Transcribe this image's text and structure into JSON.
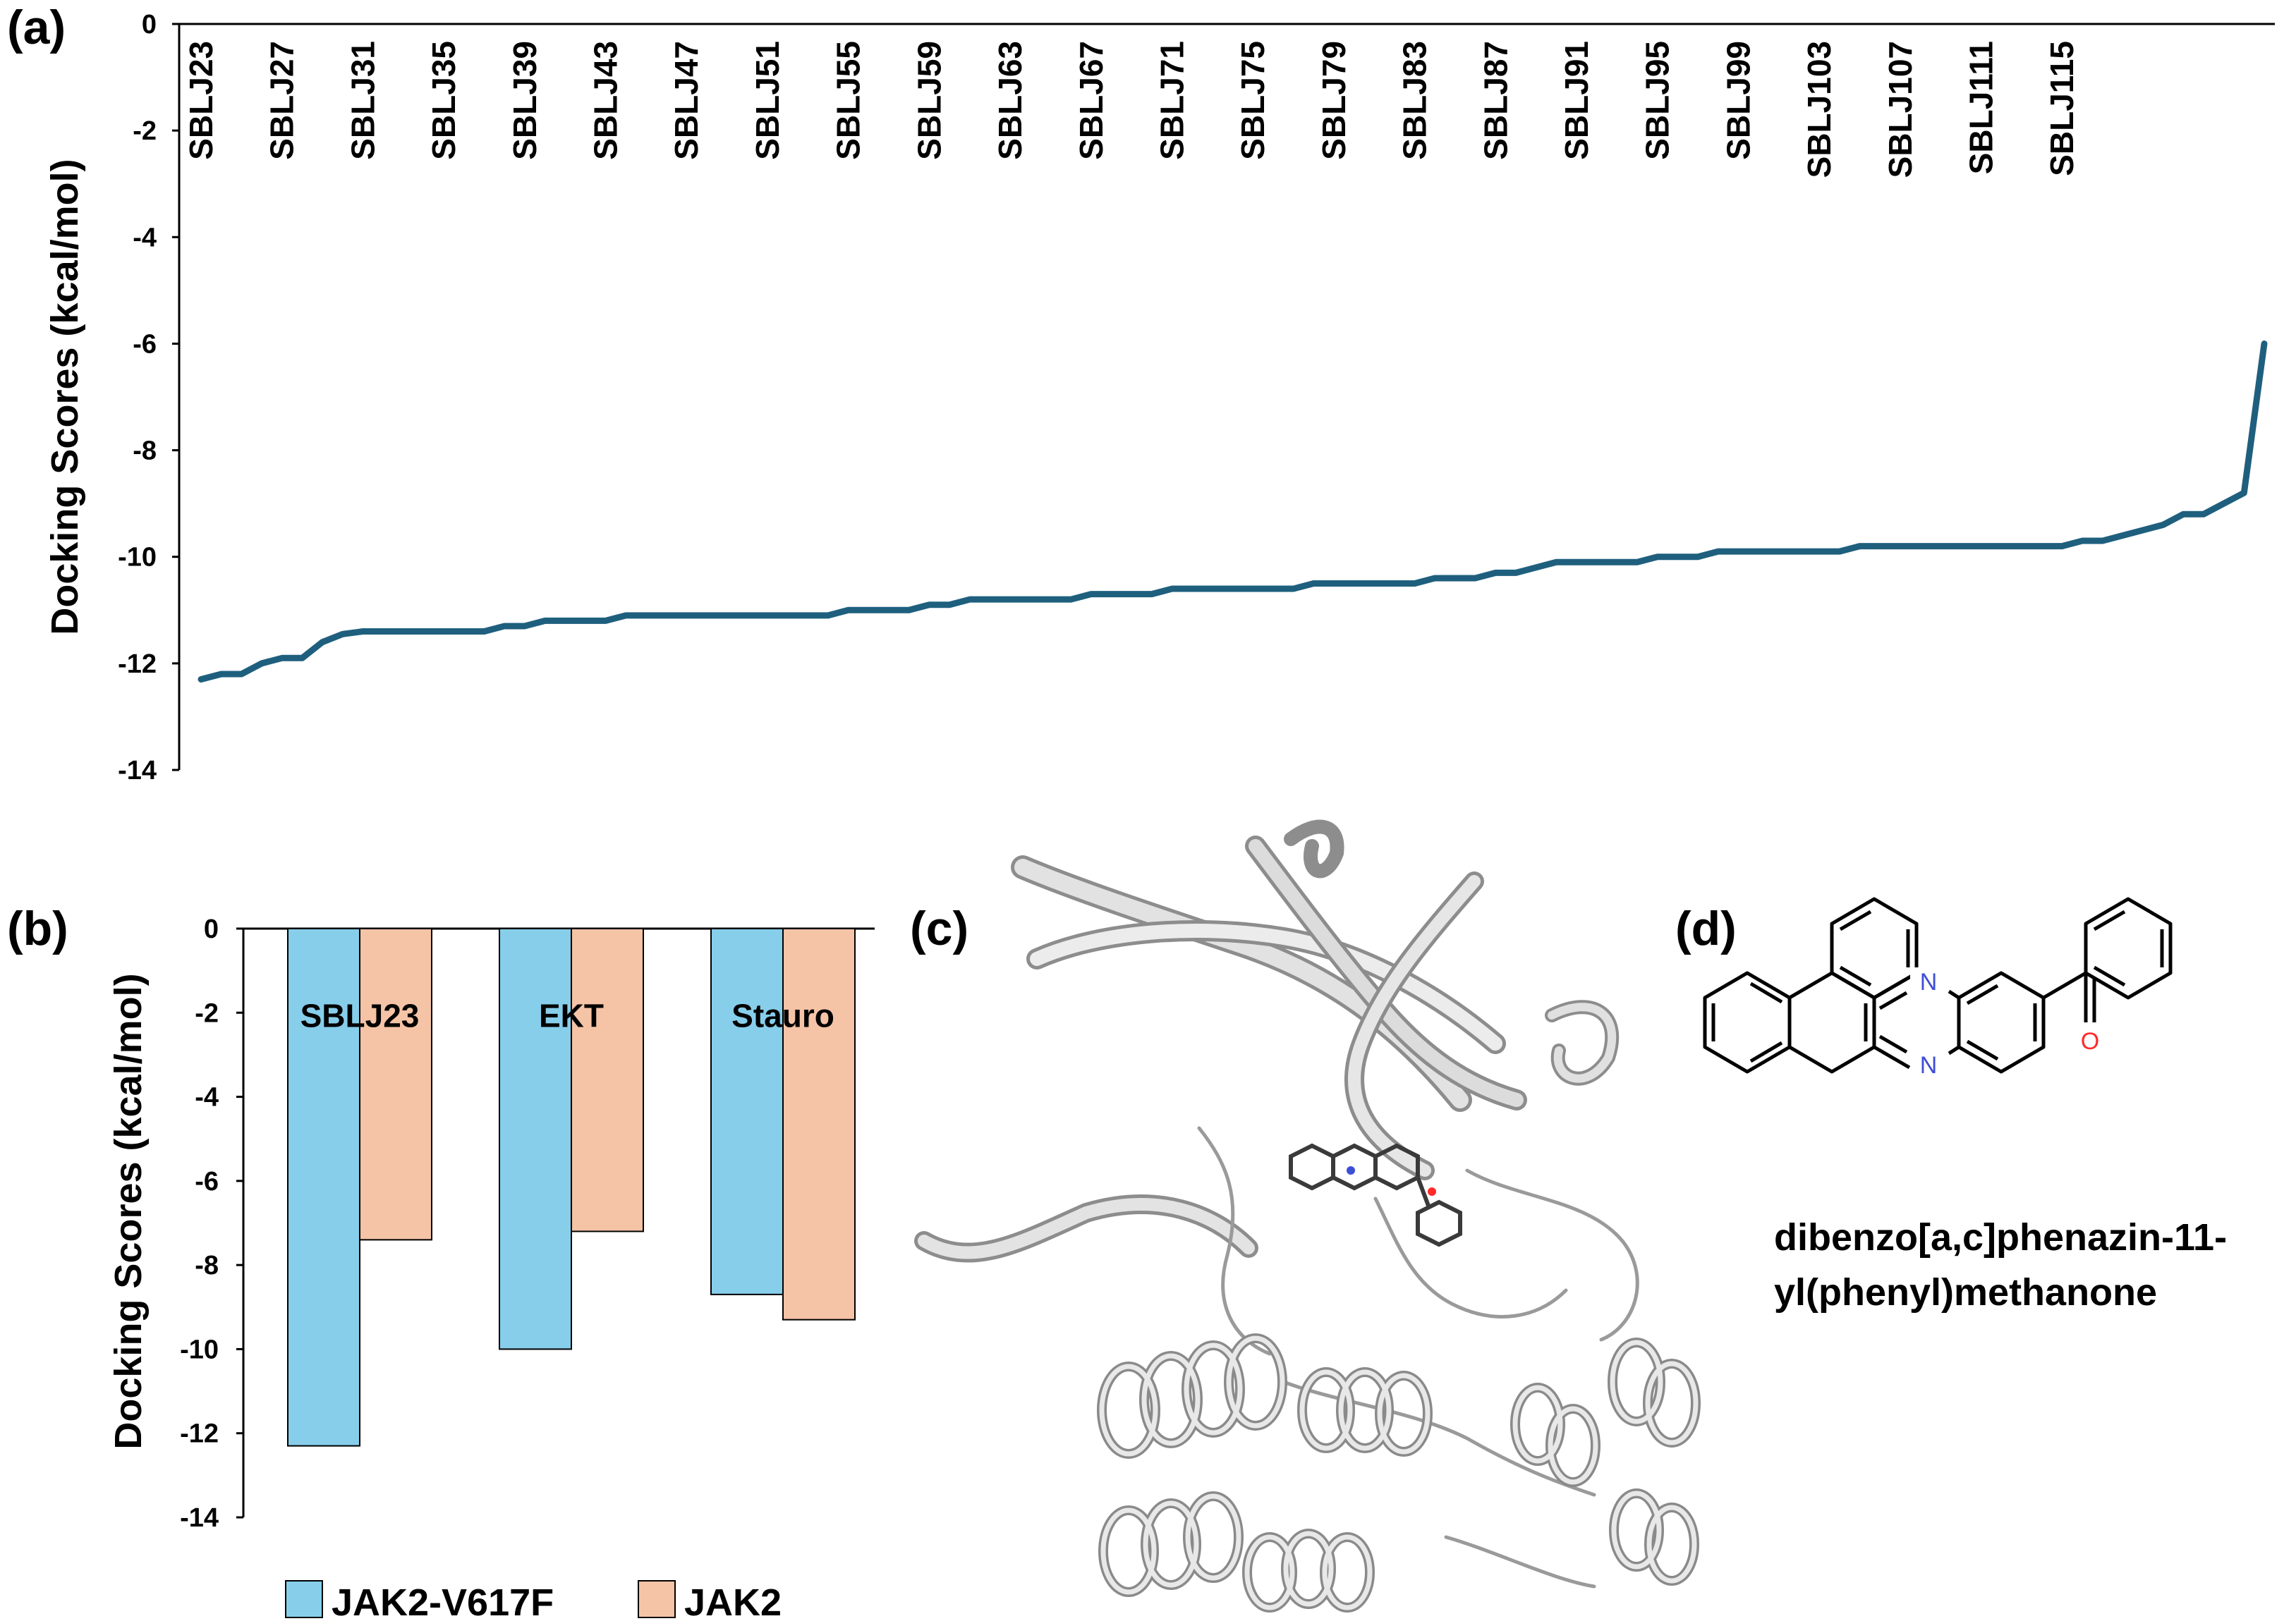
{
  "panels": {
    "a": "(a)",
    "b": "(b)",
    "c": "(c)",
    "d": "(d)"
  },
  "chart_data": [
    {
      "panel": "a",
      "type": "line",
      "ylabel": "Docking Scores (kcal/mol)",
      "ylim": [
        -14,
        0
      ],
      "yticks": [
        0,
        -2,
        -4,
        -6,
        -8,
        -10,
        -12,
        -14
      ],
      "x_tick_labels": [
        "SBLJ23",
        "SBLJ27",
        "SBLJ31",
        "SBLJ35",
        "SBLJ39",
        "SBLJ43",
        "SBLJ47",
        "SBLJ51",
        "SBLJ55",
        "SBLJ59",
        "SBLJ63",
        "SBLJ67",
        "SBLJ71",
        "SBLJ75",
        "SBLJ79",
        "SBLJ83",
        "SBLJ87",
        "SBLJ91",
        "SBLJ95",
        "SBLJ99",
        "SBLJ103",
        "SBLJ107",
        "SBLJ111",
        "SBLJ115"
      ],
      "x_axis_position": "top",
      "color": "#1f5f7e",
      "values": [
        -12.3,
        -12.2,
        -12.2,
        -12.0,
        -11.9,
        -11.9,
        -11.6,
        -11.45,
        -11.4,
        -11.4,
        -11.4,
        -11.4,
        -11.4,
        -11.4,
        -11.4,
        -11.3,
        -11.3,
        -11.2,
        -11.2,
        -11.2,
        -11.2,
        -11.1,
        -11.1,
        -11.1,
        -11.1,
        -11.1,
        -11.1,
        -11.1,
        -11.1,
        -11.1,
        -11.1,
        -11.1,
        -11.0,
        -11.0,
        -11.0,
        -11.0,
        -10.9,
        -10.9,
        -10.8,
        -10.8,
        -10.8,
        -10.8,
        -10.8,
        -10.8,
        -10.7,
        -10.7,
        -10.7,
        -10.7,
        -10.6,
        -10.6,
        -10.6,
        -10.6,
        -10.6,
        -10.6,
        -10.6,
        -10.5,
        -10.5,
        -10.5,
        -10.5,
        -10.5,
        -10.5,
        -10.4,
        -10.4,
        -10.4,
        -10.3,
        -10.3,
        -10.2,
        -10.1,
        -10.1,
        -10.1,
        -10.1,
        -10.1,
        -10.0,
        -10.0,
        -10.0,
        -9.9,
        -9.9,
        -9.9,
        -9.9,
        -9.9,
        -9.9,
        -9.9,
        -9.8,
        -9.8,
        -9.8,
        -9.8,
        -9.8,
        -9.8,
        -9.8,
        -9.8,
        -9.8,
        -9.8,
        -9.8,
        -9.7,
        -9.7,
        -9.6,
        -9.5,
        -9.4,
        -9.2,
        -9.2,
        -9.0,
        -8.8,
        -6.0
      ]
    },
    {
      "panel": "b",
      "type": "bar",
      "ylabel": "Docking Scores (kcal/mol)",
      "ylim": [
        -14,
        0
      ],
      "yticks": [
        0,
        -2,
        -4,
        -6,
        -8,
        -10,
        -12,
        -14
      ],
      "categories": [
        "SBLJ23",
        "EKT",
        "Stauro"
      ],
      "series": [
        {
          "name": "JAK2-V617F",
          "color": "#87ceeb",
          "values": [
            -12.3,
            -10.0,
            -8.7
          ]
        },
        {
          "name": "JAK2",
          "color": "#f5c3a6",
          "values": [
            -7.4,
            -7.2,
            -9.3
          ]
        }
      ],
      "legend": "bottom"
    }
  ],
  "structure": {
    "atom_n1": "N",
    "atom_n2": "N",
    "atom_o": "O",
    "caption_line1": "dibenzo[a,c]phenazin-11-",
    "caption_line2": "yl(phenyl)methanone"
  }
}
